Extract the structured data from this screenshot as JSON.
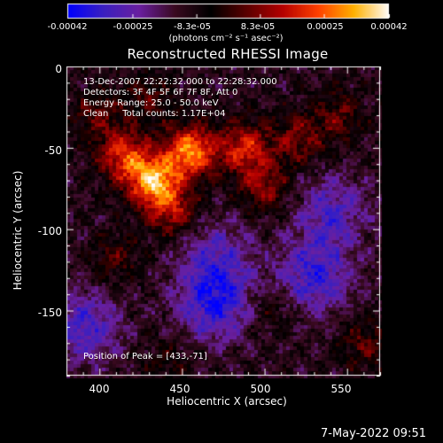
{
  "chart_data": {
    "type": "heatmap",
    "title": "Reconstructed RHESSI Image",
    "xlabel": "Heliocentric X (arcsec)",
    "ylabel": "Heliocentric Y (arcsec)",
    "xlim": [
      380,
      570
    ],
    "ylim": [
      -190,
      0
    ],
    "xticks": [
      400,
      450,
      500,
      550
    ],
    "yticks": [
      0,
      -50,
      -100,
      -150
    ],
    "colorbar": {
      "range": [
        -0.00042,
        0.00042
      ],
      "ticks": [
        "-0.00042",
        "-0.00025",
        "-8.3e-05",
        "8.3e-05",
        "0.00025",
        "0.00042"
      ],
      "tick_values": [
        -0.00042,
        -0.00025,
        -8.3e-05,
        8.3e-05,
        0.00025,
        0.00042
      ],
      "units": "(photons cm⁻² s⁻¹ asec⁻²)",
      "colormap": [
        "#0000ff",
        "#3b20c0",
        "#6a1fa0",
        "#3a0a20",
        "#000000",
        "#5a0000",
        "#b40000",
        "#ff4000",
        "#ffb000",
        "#ffffff"
      ]
    },
    "annotations": [
      "13-Dec-2007 22:22:32.000 to 22:28:32.000",
      "Detectors: 3F 4F 5F 6F 7F 8F, Att 0",
      "Energy Range: 25.0 - 50.0 keV",
      "Clean     Total counts: 1.17E+04"
    ],
    "peak_label": "Position of Peak = [433,-71]",
    "peak": [
      433,
      -71
    ],
    "sources": [
      {
        "x": 433,
        "y": -71,
        "value": 0.00042
      },
      {
        "x": 455,
        "y": -52,
        "value": 0.0004
      },
      {
        "x": 415,
        "y": -55,
        "value": 0.0003
      },
      {
        "x": 488,
        "y": -50,
        "value": 0.00028
      },
      {
        "x": 445,
        "y": -90,
        "value": 0.00022
      },
      {
        "x": 500,
        "y": -75,
        "value": 0.0002
      },
      {
        "x": 520,
        "y": -45,
        "value": 0.00018
      },
      {
        "x": 545,
        "y": -30,
        "value": 0.00015
      },
      {
        "x": 398,
        "y": -30,
        "value": 0.00014
      },
      {
        "x": 430,
        "y": -20,
        "value": 0.00012
      },
      {
        "x": 410,
        "y": -118,
        "value": 0.00012
      },
      {
        "x": 560,
        "y": -170,
        "value": 0.00014
      },
      {
        "x": 505,
        "y": -150,
        "value": 0.0001
      },
      {
        "x": 440,
        "y": -180,
        "value": 8e-05
      },
      {
        "x": 470,
        "y": -145,
        "value": -0.00025
      },
      {
        "x": 530,
        "y": -130,
        "value": -0.00022
      },
      {
        "x": 540,
        "y": -90,
        "value": -0.00018
      },
      {
        "x": 390,
        "y": -160,
        "value": -0.0002
      },
      {
        "x": 470,
        "y": -115,
        "value": -0.00015
      }
    ]
  },
  "footer": {
    "timestamp": "7-May-2022 09:51"
  }
}
